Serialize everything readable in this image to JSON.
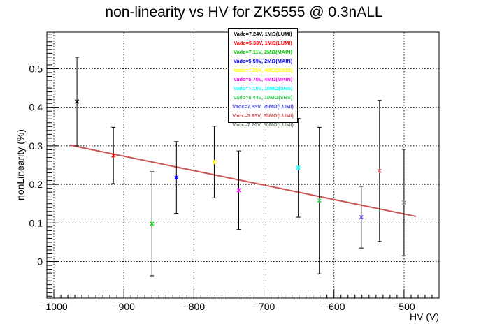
{
  "chart_data": {
    "type": "scatter",
    "title": "non-linearity vs HV for ZK5555 @ 0.3nALL",
    "xlabel": "HV (V)",
    "ylabel": "nonLinearity (%)",
    "xlim": [
      -1010,
      -450
    ],
    "ylim": [
      -0.095,
      0.595
    ],
    "xticks": [
      -1000,
      -900,
      -800,
      -700,
      -600,
      -500
    ],
    "xtick_labels": [
      "−1000",
      "−900",
      "−800",
      "−700",
      "−600",
      "−500"
    ],
    "yticks": [
      0,
      0.1,
      0.2,
      0.3,
      0.4,
      0.5
    ],
    "ytick_labels": [
      "0",
      "0.1",
      "0.2",
      "0.3",
      "0.4",
      "0.5"
    ],
    "grid": true,
    "legend_position": "top-center",
    "series": [
      {
        "name": "Vadc=7.24V, 1MΩ(LUMI)",
        "color": "#000000",
        "x": -967,
        "y": 0.415,
        "err": 0.115
      },
      {
        "name": "Vadc=5.33V, 1MΩ(LUMI)",
        "color": "#ff0000",
        "x": -915,
        "y": 0.275,
        "err": 0.073
      },
      {
        "name": "Vadc=7.11V, 2MΩ(MAIN)",
        "color": "#00cc00",
        "x": -860,
        "y": 0.098,
        "err": 0.135
      },
      {
        "name": "Vadc=5.59V, 2MΩ(MAIN)",
        "color": "#0000ff",
        "x": -825,
        "y": 0.218,
        "err": 0.093
      },
      {
        "name": "Vadc=7.56V, 4MΩ(MAIN)",
        "color": "#ffff00",
        "x": -771,
        "y": 0.258,
        "err": 0.093
      },
      {
        "name": "Vadc=5.70V, 4MΩ(MAIN)",
        "color": "#ff00ff",
        "x": -736,
        "y": 0.185,
        "err": 0.102
      },
      {
        "name": "Vadc=7.16V, 10MΩ(SNS)",
        "color": "#00ffff",
        "x": -651,
        "y": 0.243,
        "err": 0.128
      },
      {
        "name": "Vadc=5.44V, 10MΩ(SNS)",
        "color": "#33cc55",
        "x": -621,
        "y": 0.158,
        "err": 0.19
      },
      {
        "name": "Vadc=7.35V, 25MΩ(LUMI)",
        "color": "#5555dd",
        "x": -561,
        "y": 0.115,
        "err": 0.08
      },
      {
        "name": "Vadc=5.65V, 25MΩ(LUMI)",
        "color": "#cc5555",
        "x": -535,
        "y": 0.235,
        "err": 0.183
      },
      {
        "name": "Vadc=7.70V, 50MΩ(LUMI)",
        "color": "#778877",
        "x": -500,
        "y": 0.153,
        "err": 0.138
      }
    ],
    "fit_line": {
      "color": "#cc5555",
      "x": [
        -977,
        -483
      ],
      "y": [
        0.302,
        0.117
      ]
    }
  }
}
